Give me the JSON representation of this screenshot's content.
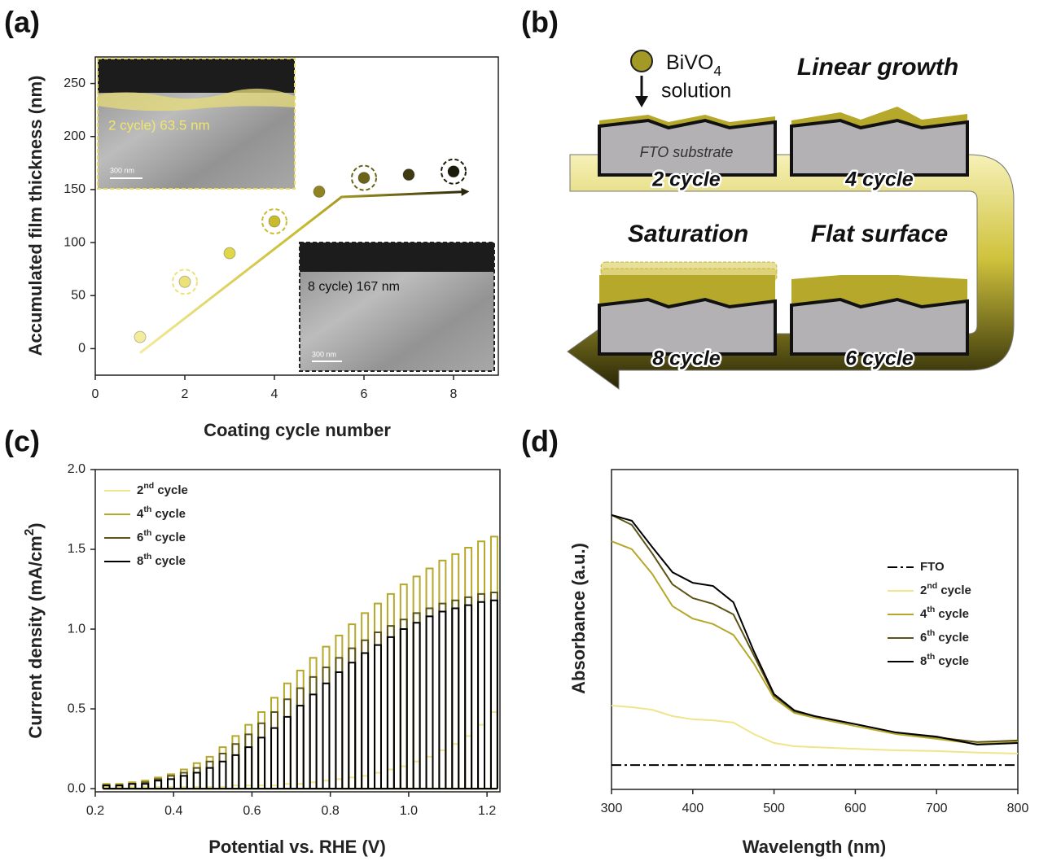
{
  "chart_data": [
    {
      "type": "scatter",
      "panel_label": "(a)",
      "x_label": "Coating cycle number",
      "y_label": "Accumulated film thickness  (nm)",
      "x": [
        1,
        2,
        3,
        4,
        5,
        6,
        7,
        8
      ],
      "values": [
        11,
        63,
        90,
        120,
        148,
        161,
        164,
        167
      ],
      "colors": [
        "#f3ec9c",
        "#ede27a",
        "#e0d64a",
        "#c9bb2e",
        "#8f8420",
        "#6b6318",
        "#3f3a10",
        "#1a1a08"
      ],
      "circled": [
        false,
        true,
        false,
        true,
        false,
        true,
        false,
        true
      ],
      "fit": {
        "x": [
          1,
          5.5,
          8.3
        ],
        "values": [
          -4,
          143,
          148
        ]
      },
      "xlim": [
        0,
        9
      ],
      "xticks": [
        0,
        2,
        4,
        6,
        8
      ],
      "ylim": [
        -25,
        275
      ],
      "yticks": [
        0,
        50,
        100,
        150,
        200,
        250
      ],
      "insets": [
        {
          "label": "2 cycle) 63.5 nm",
          "scale_bar": "300 nm"
        },
        {
          "label": "8 cycle) 167 nm",
          "scale_bar": "300 nm"
        }
      ]
    },
    {
      "type": "line",
      "chopped": true,
      "panel_label": "(c)",
      "x_label": "Potential vs. RHE (V)",
      "y_label": "Current density (mA/cm2)",
      "x": [
        0.22,
        0.253,
        0.286,
        0.319,
        0.352,
        0.385,
        0.418,
        0.451,
        0.484,
        0.517,
        0.55,
        0.583,
        0.616,
        0.649,
        0.682,
        0.715,
        0.748,
        0.781,
        0.814,
        0.847,
        0.88,
        0.913,
        0.946,
        0.979,
        1.012,
        1.045,
        1.078,
        1.111,
        1.144,
        1.177,
        1.21
      ],
      "series": [
        {
          "name": "2nd cycle",
          "color": "#efe58a",
          "values": [
            0.01,
            0.01,
            0.01,
            0.01,
            0.01,
            0.01,
            0.01,
            0.01,
            0.01,
            0.01,
            0.02,
            0.02,
            0.02,
            0.02,
            0.03,
            0.03,
            0.04,
            0.05,
            0.06,
            0.07,
            0.08,
            0.1,
            0.12,
            0.14,
            0.17,
            0.2,
            0.24,
            0.28,
            0.33,
            0.4,
            0.48
          ]
        },
        {
          "name": "4th cycle",
          "color": "#b5a82a",
          "values": [
            0.03,
            0.03,
            0.04,
            0.05,
            0.07,
            0.09,
            0.12,
            0.16,
            0.2,
            0.26,
            0.33,
            0.4,
            0.48,
            0.57,
            0.66,
            0.74,
            0.82,
            0.89,
            0.96,
            1.03,
            1.1,
            1.16,
            1.22,
            1.28,
            1.33,
            1.38,
            1.43,
            1.47,
            1.51,
            1.55,
            1.58
          ]
        },
        {
          "name": "6th cycle",
          "color": "#5c5417",
          "values": [
            0.02,
            0.02,
            0.03,
            0.04,
            0.06,
            0.08,
            0.1,
            0.13,
            0.17,
            0.22,
            0.28,
            0.34,
            0.41,
            0.48,
            0.56,
            0.63,
            0.7,
            0.76,
            0.82,
            0.88,
            0.93,
            0.98,
            1.02,
            1.06,
            1.1,
            1.13,
            1.16,
            1.18,
            1.2,
            1.22,
            1.23
          ]
        },
        {
          "name": "8th cycle",
          "color": "#000000",
          "values": [
            0.02,
            0.02,
            0.03,
            0.03,
            0.05,
            0.06,
            0.08,
            0.1,
            0.13,
            0.17,
            0.21,
            0.26,
            0.32,
            0.38,
            0.45,
            0.52,
            0.59,
            0.66,
            0.73,
            0.79,
            0.85,
            0.9,
            0.95,
            1.0,
            1.04,
            1.08,
            1.11,
            1.13,
            1.15,
            1.17,
            1.18
          ]
        }
      ],
      "xlim": [
        0.2,
        1.233
      ],
      "xticks": [
        0.2,
        0.4,
        0.6,
        0.8,
        {
          "value": 1,
          "label": "1.0"
        },
        1.2
      ],
      "ylim": [
        -0.02,
        2.0
      ],
      "yticks": [
        {
          "value": 0,
          "label": "0.0"
        },
        0.5,
        {
          "value": 1,
          "label": "1.0"
        },
        1.5,
        {
          "value": 2,
          "label": "2.0"
        }
      ],
      "legend": "upper left"
    },
    {
      "type": "line",
      "panel_label": "(d)",
      "x_label": "Wavelength (nm)",
      "y_label": "Absorbance (a.u.)",
      "series": [
        {
          "name": "FTO",
          "color": "#000000",
          "style": "dash-dot",
          "x": [
            300,
            800
          ],
          "values": [
            0.076,
            0.076
          ]
        },
        {
          "name": "2nd cycle",
          "color": "#efe58a",
          "x": [
            300,
            325,
            350,
            375,
            400,
            425,
            450,
            475,
            500,
            525,
            550,
            600,
            650,
            700,
            750,
            800
          ],
          "values": [
            0.262,
            0.257,
            0.249,
            0.229,
            0.219,
            0.216,
            0.209,
            0.173,
            0.145,
            0.135,
            0.132,
            0.127,
            0.122,
            0.12,
            0.115,
            0.112
          ]
        },
        {
          "name": "4th cycle",
          "color": "#b5a82a",
          "x": [
            300,
            325,
            350,
            375,
            400,
            425,
            450,
            475,
            500,
            525,
            550,
            600,
            650,
            700,
            750,
            800
          ],
          "values": [
            0.776,
            0.751,
            0.674,
            0.573,
            0.534,
            0.517,
            0.483,
            0.394,
            0.285,
            0.239,
            0.224,
            0.198,
            0.173,
            0.158,
            0.142,
            0.148
          ]
        },
        {
          "name": "6th cycle",
          "color": "#5c5417",
          "x": [
            300,
            325,
            350,
            375,
            400,
            425,
            450,
            475,
            500,
            525,
            550,
            600,
            650,
            700,
            750,
            800
          ],
          "values": [
            0.858,
            0.827,
            0.738,
            0.641,
            0.598,
            0.58,
            0.547,
            0.42,
            0.293,
            0.244,
            0.229,
            0.204,
            0.178,
            0.163,
            0.148,
            0.153
          ]
        },
        {
          "name": "8th cycle",
          "color": "#000000",
          "x": [
            300,
            325,
            350,
            375,
            400,
            425,
            450,
            475,
            500,
            525,
            550,
            600,
            650,
            700,
            750,
            800
          ],
          "values": [
            0.858,
            0.84,
            0.758,
            0.679,
            0.646,
            0.636,
            0.585,
            0.433,
            0.298,
            0.247,
            0.229,
            0.204,
            0.178,
            0.165,
            0.14,
            0.145
          ]
        }
      ],
      "xlim": [
        300,
        800
      ],
      "xticks": [
        300,
        400,
        500,
        600,
        700,
        800
      ],
      "ylim": [
        0,
        1
      ],
      "yticks": [],
      "legend": "center right"
    }
  ],
  "diagram": {
    "panel_label": "(b)",
    "reagent": "BiVO4",
    "reagent_form": "solution",
    "substrate": "FTO substrate",
    "stages": [
      {
        "title": "Linear growth",
        "cycle": "4 cycle"
      },
      {
        "title": "Saturation",
        "cycle": "8 cycle"
      },
      {
        "title": "Flat surface",
        "cycle": "6 cycle"
      }
    ],
    "first_cycle": "2 cycle"
  }
}
